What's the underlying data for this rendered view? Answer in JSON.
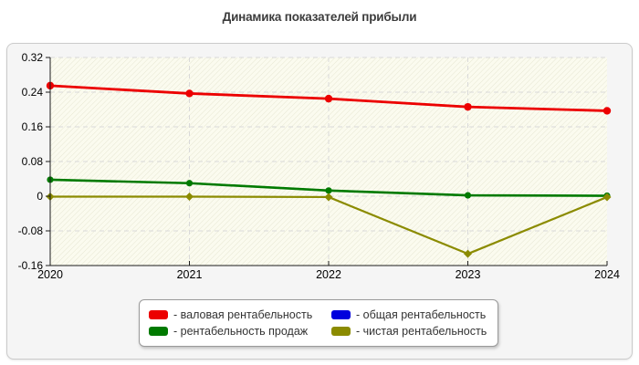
{
  "title": "Динамика показателей прибыли",
  "chart_data": {
    "type": "line",
    "title": "Динамика показателей прибыли",
    "x": [
      "2020",
      "2021",
      "2022",
      "2023",
      "2024"
    ],
    "ylim": [
      -0.16,
      0.32
    ],
    "yticks": [
      "0.32",
      "0.24",
      "0.16",
      "0.08",
      "0",
      "-0.08",
      "-0.16"
    ],
    "grid": true,
    "legend_position": "bottom",
    "plot_background": "#fbfbef",
    "series": [
      {
        "name": "валовая рентабельность",
        "color": "#ec0000",
        "marker": "circle",
        "line_width": 2.8,
        "marker_size": 4.2,
        "values": [
          0.255,
          0.237,
          0.225,
          0.206,
          0.197
        ]
      },
      {
        "name": "общая рентабельность",
        "color": "#0000dd",
        "marker": "circle",
        "line_width": 2.4,
        "marker_size": 3.5,
        "values": [
          null,
          null,
          null,
          null,
          null
        ]
      },
      {
        "name": "рентабельность продаж",
        "color": "#007a00",
        "marker": "circle",
        "line_width": 2.6,
        "marker_size": 3.6,
        "values": [
          0.038,
          0.03,
          0.013,
          0.002,
          0.001
        ]
      },
      {
        "name": "чистая рентабельность",
        "color": "#8b8b00",
        "marker": "diamond",
        "line_width": 2.2,
        "marker_size": 4.5,
        "values": [
          -0.001,
          -0.001,
          -0.002,
          -0.133,
          -0.002
        ]
      }
    ]
  },
  "legend": {
    "items": [
      {
        "label": "- валовая рентабельность",
        "color": "#ec0000"
      },
      {
        "label": "- общая рентабельность",
        "color": "#0000dd"
      },
      {
        "label": "- рентабельность продаж",
        "color": "#007a00"
      },
      {
        "label": "- чистая рентабельность",
        "color": "#8b8b00"
      }
    ]
  },
  "colors": {
    "panel_bg": "#f5f5f5",
    "panel_border": "#cbcbcb",
    "plot_bg": "#fbfbef",
    "gridline": "#d9d9d9",
    "axis": "#1c1c1c",
    "title_text": "#3c3c3c"
  }
}
